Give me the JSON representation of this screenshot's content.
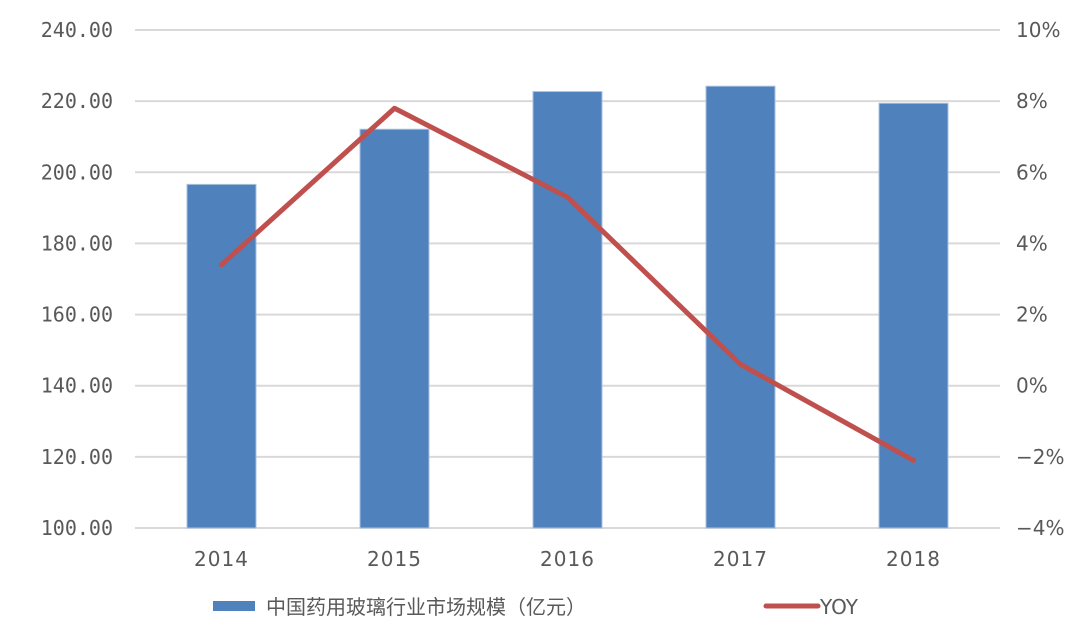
{
  "chart_data": {
    "type": "bar+line",
    "title": "",
    "categories": [
      "2014",
      "2015",
      "2016",
      "2017",
      "2018"
    ],
    "series": [
      {
        "name": "中国药用玻璃行业市场规模（亿元）",
        "type": "bar",
        "axis": "left",
        "color": "#4f81bd",
        "values": [
          196.6,
          212.1,
          222.7,
          224.2,
          219.4
        ]
      },
      {
        "name": "YOY",
        "type": "line",
        "axis": "right",
        "color": "#c0504d",
        "values": [
          3.4,
          7.8,
          5.3,
          0.6,
          -2.1
        ]
      }
    ],
    "left_axis": {
      "ylim": [
        100,
        240
      ],
      "ticks": [
        "240.00",
        "220.00",
        "200.00",
        "180.00",
        "160.00",
        "140.00",
        "120.00",
        "100.00"
      ]
    },
    "right_axis": {
      "ylim": [
        -4,
        10
      ],
      "ticks": [
        "10%",
        "8%",
        "6%",
        "4%",
        "2%",
        "0%",
        "−2%",
        "−4%"
      ]
    },
    "grid": true,
    "legend_position": "bottom"
  },
  "legend": {
    "bar_label": "中国药用玻璃行业市场规模（亿元）",
    "line_label": "YOY"
  }
}
